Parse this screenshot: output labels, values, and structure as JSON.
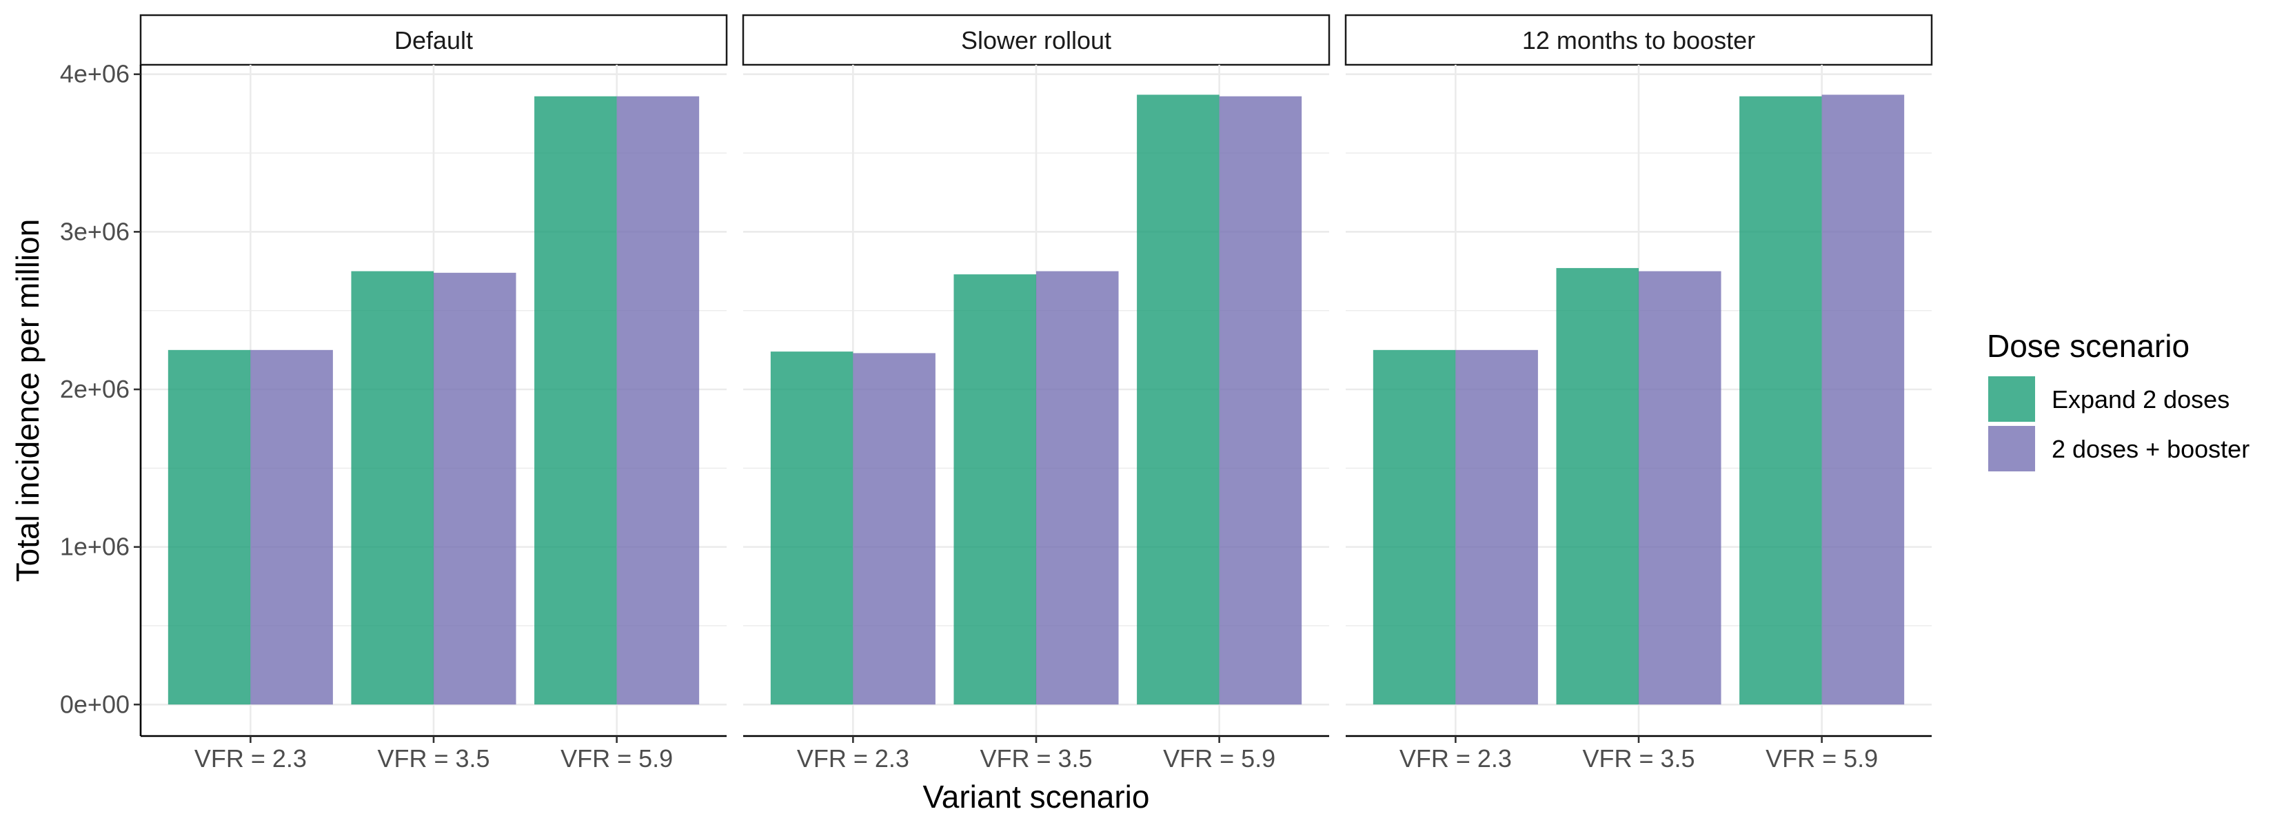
{
  "chart_data": {
    "type": "bar",
    "facet_labels": [
      "Default",
      "Slower rollout",
      "12 months to booster"
    ],
    "categories": [
      "VFR = 2.3",
      "VFR = 3.5",
      "VFR = 5.9"
    ],
    "series": [
      {
        "name": "Expand 2 doses",
        "color": "#1b9e77",
        "values": [
          [
            2250000,
            2750000,
            3860000
          ],
          [
            2240000,
            2730000,
            3870000
          ],
          [
            2250000,
            2770000,
            3860000
          ]
        ]
      },
      {
        "name": "2 doses + booster",
        "color": "#7570b3",
        "values": [
          [
            2250000,
            2740000,
            3860000
          ],
          [
            2230000,
            2750000,
            3860000
          ],
          [
            2250000,
            2750000,
            3870000
          ]
        ]
      }
    ],
    "bar_opacity": 0.8,
    "xlabel": "Variant scenario",
    "ylabel": "Total incidence per million",
    "ylim": [
      -200000,
      4060000
    ],
    "yticks": [
      0,
      1000000,
      2000000,
      3000000,
      4000000
    ],
    "ytick_labels": [
      "0e+00",
      "1e+06",
      "2e+06",
      "3e+06",
      "4e+06"
    ],
    "grid": true,
    "legend": {
      "title": "Dose scenario",
      "position": "right"
    }
  }
}
